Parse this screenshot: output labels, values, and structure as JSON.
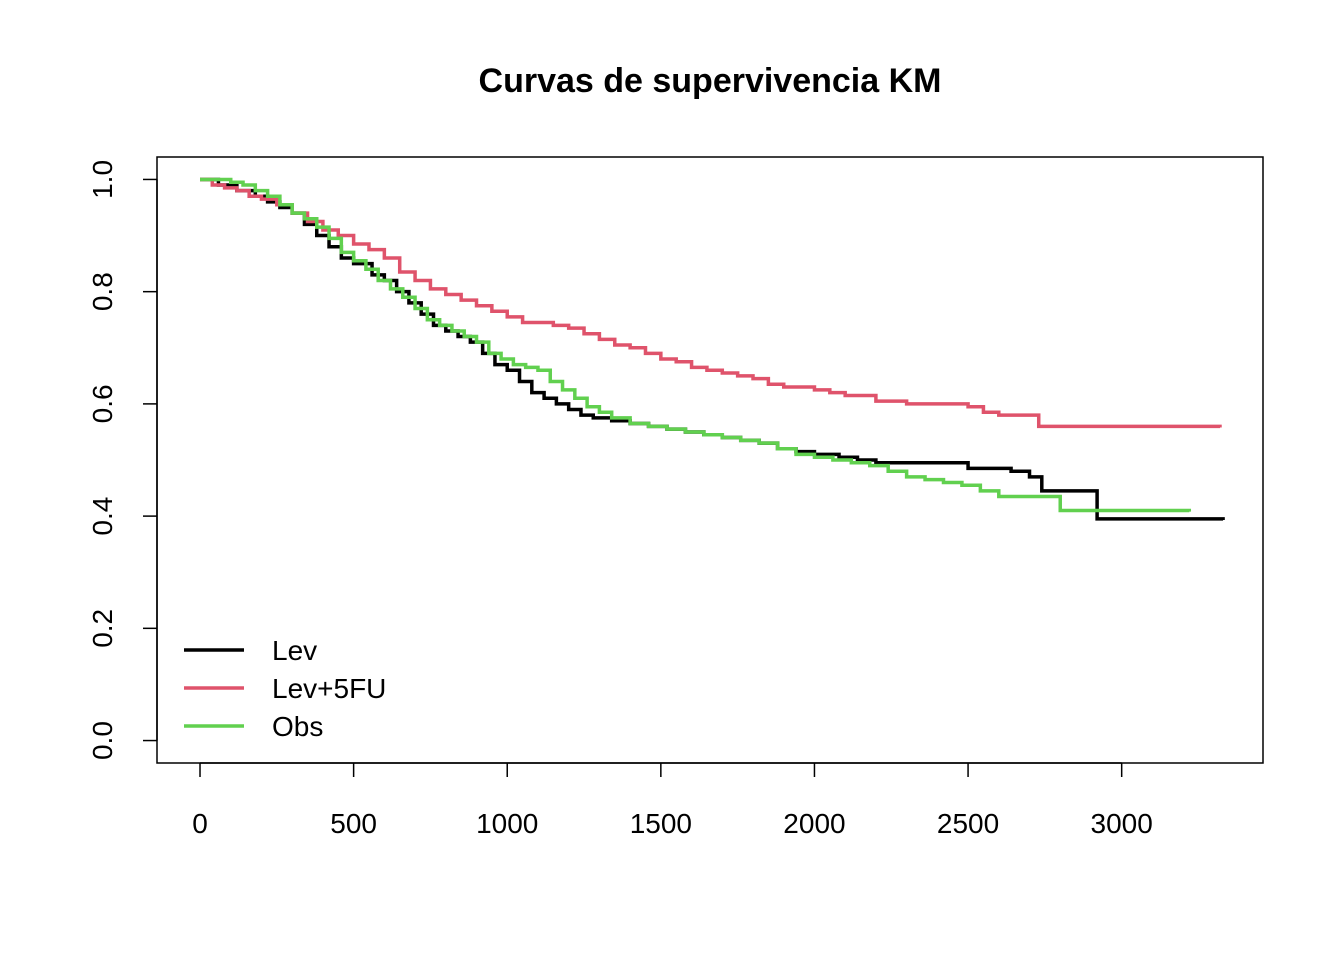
{
  "chart_data": {
    "type": "line",
    "step": true,
    "title": "Curvas de supervivencia KM",
    "xlabel": "",
    "ylabel": "",
    "xlim": [
      -140,
      3460
    ],
    "ylim": [
      -0.04,
      1.04
    ],
    "xticks": [
      0,
      500,
      1000,
      1500,
      2000,
      2500,
      3000
    ],
    "xtick_labels": [
      "0",
      "500",
      "1000",
      "1500",
      "2000",
      "2500",
      "3000"
    ],
    "yticks": [
      0.0,
      0.2,
      0.4,
      0.6,
      0.8,
      1.0
    ],
    "ytick_labels": [
      "0.0",
      "0.2",
      "0.4",
      "0.6",
      "0.8",
      "1.0"
    ],
    "grid": false,
    "legend_position": "bottom-left",
    "series": [
      {
        "name": "Lev",
        "color": "#000000",
        "x": [
          0,
          60,
          120,
          180,
          220,
          260,
          300,
          340,
          380,
          420,
          460,
          500,
          560,
          600,
          640,
          680,
          720,
          760,
          800,
          840,
          880,
          920,
          960,
          1000,
          1040,
          1080,
          1120,
          1160,
          1200,
          1240,
          1280,
          1340,
          1400,
          1460,
          1520,
          1580,
          1640,
          1700,
          1760,
          1820,
          1880,
          1940,
          2000,
          2080,
          2140,
          2200,
          2300,
          2400,
          2500,
          2600,
          2640,
          2700,
          2740,
          2800,
          2860,
          2900,
          2920,
          3000,
          3100,
          3200,
          3330
        ],
        "y": [
          1.0,
          0.99,
          0.98,
          0.97,
          0.96,
          0.95,
          0.94,
          0.92,
          0.9,
          0.88,
          0.86,
          0.85,
          0.83,
          0.82,
          0.8,
          0.78,
          0.76,
          0.74,
          0.73,
          0.72,
          0.71,
          0.69,
          0.67,
          0.66,
          0.64,
          0.62,
          0.61,
          0.6,
          0.59,
          0.58,
          0.575,
          0.57,
          0.565,
          0.56,
          0.555,
          0.55,
          0.545,
          0.54,
          0.535,
          0.53,
          0.52,
          0.515,
          0.51,
          0.505,
          0.5,
          0.495,
          0.495,
          0.495,
          0.485,
          0.485,
          0.48,
          0.47,
          0.445,
          0.445,
          0.445,
          0.445,
          0.395,
          0.395,
          0.395,
          0.395,
          0.393
        ]
      },
      {
        "name": "Lev+5FU",
        "color": "#df536b",
        "x": [
          0,
          40,
          80,
          120,
          160,
          200,
          250,
          300,
          350,
          400,
          450,
          500,
          550,
          600,
          650,
          700,
          750,
          800,
          850,
          900,
          950,
          1000,
          1050,
          1100,
          1150,
          1200,
          1250,
          1300,
          1350,
          1400,
          1450,
          1500,
          1550,
          1600,
          1650,
          1700,
          1750,
          1800,
          1850,
          1900,
          1950,
          2000,
          2050,
          2100,
          2200,
          2300,
          2400,
          2500,
          2550,
          2600,
          2700,
          2730,
          2800,
          2900,
          3000,
          3100,
          3200,
          3320
        ],
        "y": [
          1.0,
          0.99,
          0.985,
          0.98,
          0.97,
          0.965,
          0.955,
          0.94,
          0.925,
          0.91,
          0.9,
          0.885,
          0.875,
          0.86,
          0.835,
          0.82,
          0.805,
          0.795,
          0.785,
          0.775,
          0.765,
          0.755,
          0.745,
          0.745,
          0.74,
          0.735,
          0.725,
          0.715,
          0.705,
          0.7,
          0.69,
          0.68,
          0.675,
          0.665,
          0.66,
          0.655,
          0.65,
          0.645,
          0.635,
          0.63,
          0.63,
          0.625,
          0.62,
          0.615,
          0.605,
          0.6,
          0.6,
          0.595,
          0.585,
          0.58,
          0.58,
          0.56,
          0.56,
          0.56,
          0.56,
          0.56,
          0.56,
          0.558
        ]
      },
      {
        "name": "Obs",
        "color": "#61d04f",
        "x": [
          0,
          60,
          100,
          140,
          180,
          220,
          260,
          300,
          340,
          380,
          420,
          460,
          500,
          540,
          580,
          620,
          660,
          700,
          740,
          780,
          820,
          860,
          900,
          940,
          980,
          1020,
          1060,
          1100,
          1140,
          1180,
          1220,
          1260,
          1300,
          1340,
          1400,
          1460,
          1520,
          1580,
          1640,
          1700,
          1760,
          1820,
          1880,
          1940,
          2000,
          2060,
          2120,
          2180,
          2240,
          2300,
          2360,
          2420,
          2480,
          2540,
          2600,
          2660,
          2720,
          2780,
          2800,
          2900,
          3000,
          3100,
          3220
        ],
        "y": [
          1.0,
          1.0,
          0.995,
          0.99,
          0.98,
          0.97,
          0.955,
          0.94,
          0.93,
          0.915,
          0.895,
          0.87,
          0.855,
          0.84,
          0.82,
          0.805,
          0.79,
          0.77,
          0.75,
          0.74,
          0.73,
          0.72,
          0.71,
          0.69,
          0.68,
          0.67,
          0.665,
          0.66,
          0.64,
          0.625,
          0.61,
          0.595,
          0.585,
          0.575,
          0.565,
          0.56,
          0.555,
          0.55,
          0.545,
          0.54,
          0.535,
          0.53,
          0.52,
          0.51,
          0.505,
          0.5,
          0.495,
          0.49,
          0.48,
          0.47,
          0.465,
          0.46,
          0.455,
          0.445,
          0.435,
          0.435,
          0.435,
          0.435,
          0.41,
          0.41,
          0.41,
          0.41,
          0.408
        ]
      }
    ]
  }
}
